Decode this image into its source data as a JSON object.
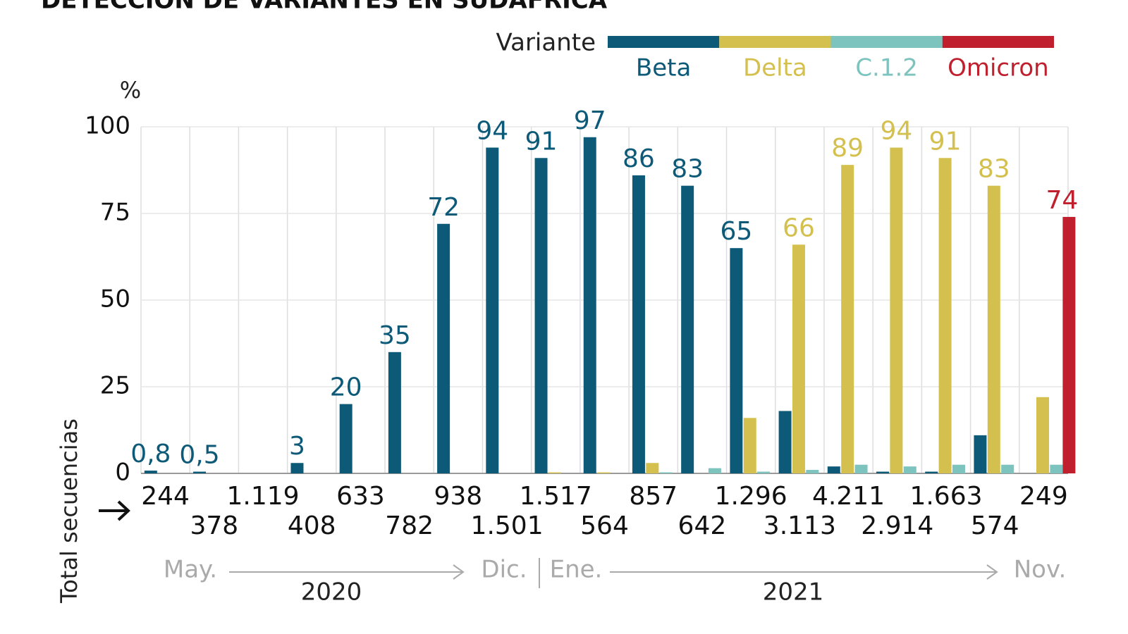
{
  "chart_data": {
    "type": "bar",
    "title": "DETECCIÓN DE VARIANTES EN SUDÁFRICA",
    "legend_title": "Variante",
    "y_unit": "%",
    "x_label": "Total secuencias",
    "categories": [
      "244",
      "378",
      "1.119",
      "408",
      "633",
      "782",
      "938",
      "1.501",
      "1.517",
      "564",
      "857",
      "642",
      "1.296",
      "3.113",
      "4.211",
      "2.914",
      "1.663",
      "574",
      "249"
    ],
    "time_labels": [
      "May.",
      "Dic.",
      "Ene.",
      "Nov."
    ],
    "year_labels": [
      "2020",
      "2021"
    ],
    "ylim": [
      0,
      100
    ],
    "yticks": [
      0,
      25,
      50,
      75,
      100
    ],
    "grid": true,
    "series": [
      {
        "name": "Beta",
        "color": "#0d5a78",
        "values": [
          0.8,
          0.5,
          null,
          3,
          20,
          35,
          72,
          94,
          91,
          97,
          86,
          83,
          65,
          18,
          2,
          0.5,
          0.5,
          11,
          null
        ],
        "value_labels": [
          "0,8",
          "0,5",
          null,
          "3",
          "20",
          "35",
          "72",
          "94",
          "91",
          "97",
          "86",
          "83",
          "65",
          null,
          null,
          null,
          null,
          null,
          null
        ]
      },
      {
        "name": "Delta",
        "color": "#d4c04e",
        "values": [
          null,
          null,
          null,
          null,
          null,
          null,
          null,
          null,
          0.3,
          0.3,
          3,
          null,
          16,
          66,
          89,
          94,
          91,
          83,
          22
        ],
        "value_labels": [
          null,
          null,
          null,
          null,
          null,
          null,
          null,
          null,
          null,
          null,
          null,
          null,
          null,
          "66",
          "89",
          "94",
          "91",
          "83",
          null
        ]
      },
      {
        "name": "C.1.2",
        "color": "#7cc4bd",
        "values": [
          null,
          null,
          null,
          null,
          null,
          null,
          null,
          null,
          null,
          null,
          0.3,
          1.5,
          0.5,
          1,
          2.5,
          2,
          2.5,
          2.5,
          2.5
        ]
      },
      {
        "name": "Omicron",
        "color": "#c0202e",
        "values": [
          null,
          null,
          null,
          null,
          null,
          null,
          null,
          null,
          null,
          null,
          null,
          null,
          null,
          null,
          null,
          null,
          null,
          null,
          74
        ],
        "value_labels": [
          null,
          null,
          null,
          null,
          null,
          null,
          null,
          null,
          null,
          null,
          null,
          null,
          null,
          null,
          null,
          null,
          null,
          null,
          "74"
        ]
      }
    ]
  }
}
